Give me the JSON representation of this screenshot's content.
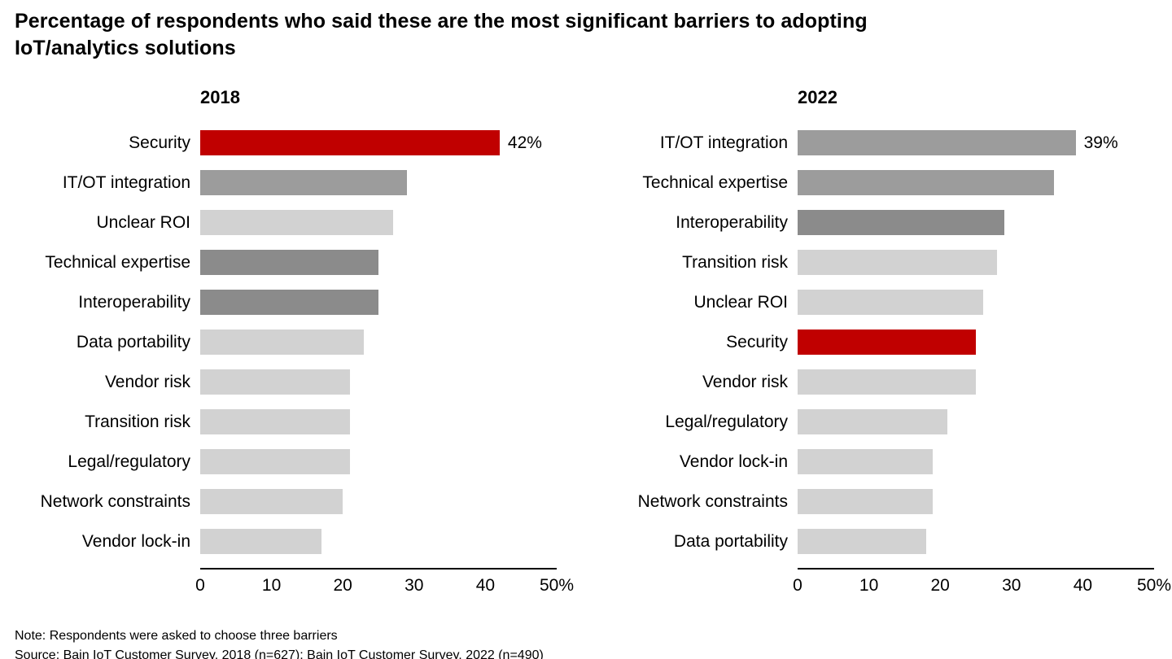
{
  "title": "Percentage of respondents who said these are the most significant barriers to adopting IoT/analytics solutions",
  "note": "Note: Respondents were asked to choose three barriers",
  "source": "Source: Bain IoT Customer Survey, 2018 (n=627); Bain IoT Customer Survey, 2022 (n=490)",
  "palette": {
    "red": "#c00000",
    "gray_medium": "#9c9c9c",
    "gray_dark": "#8b8b8b",
    "gray_light": "#d2d2d2"
  },
  "chart_data": [
    {
      "type": "bar",
      "orientation": "horizontal",
      "title": "2018",
      "xlabel": "",
      "ylabel": "",
      "xlim": [
        0,
        50
      ],
      "grid": false,
      "legend": "none",
      "x_tick_labels": [
        "0",
        "10",
        "20",
        "30",
        "40",
        "50%"
      ],
      "categories": [
        "Security",
        "IT/OT integration",
        "Unclear ROI",
        "Technical expertise",
        "Interoperability",
        "Data portability",
        "Vendor risk",
        "Transition risk",
        "Legal/regulatory",
        "Network constraints",
        "Vendor lock-in"
      ],
      "values": [
        42,
        29,
        27,
        25,
        25,
        23,
        21,
        21,
        21,
        20,
        17
      ],
      "colors": [
        "red",
        "gray_medium",
        "gray_light",
        "gray_dark",
        "gray_dark",
        "gray_light",
        "gray_light",
        "gray_light",
        "gray_light",
        "gray_light",
        "gray_light"
      ],
      "value_labels": [
        "42%",
        "",
        "",
        "",
        "",
        "",
        "",
        "",
        "",
        "",
        ""
      ]
    },
    {
      "type": "bar",
      "orientation": "horizontal",
      "title": "2022",
      "xlabel": "",
      "ylabel": "",
      "xlim": [
        0,
        50
      ],
      "grid": false,
      "legend": "none",
      "x_tick_labels": [
        "0",
        "10",
        "20",
        "30",
        "40",
        "50%"
      ],
      "categories": [
        "IT/OT integration",
        "Technical expertise",
        "Interoperability",
        "Transition risk",
        "Unclear ROI",
        "Security",
        "Vendor risk",
        "Legal/regulatory",
        "Vendor lock-in",
        "Network constraints",
        "Data portability"
      ],
      "values": [
        39,
        36,
        29,
        28,
        26,
        25,
        25,
        21,
        19,
        19,
        18
      ],
      "colors": [
        "gray_medium",
        "gray_medium",
        "gray_dark",
        "gray_light",
        "gray_light",
        "red",
        "gray_light",
        "gray_light",
        "gray_light",
        "gray_light",
        "gray_light"
      ],
      "value_labels": [
        "39%",
        "",
        "",
        "",
        "",
        "",
        "",
        "",
        "",
        "",
        ""
      ]
    }
  ]
}
